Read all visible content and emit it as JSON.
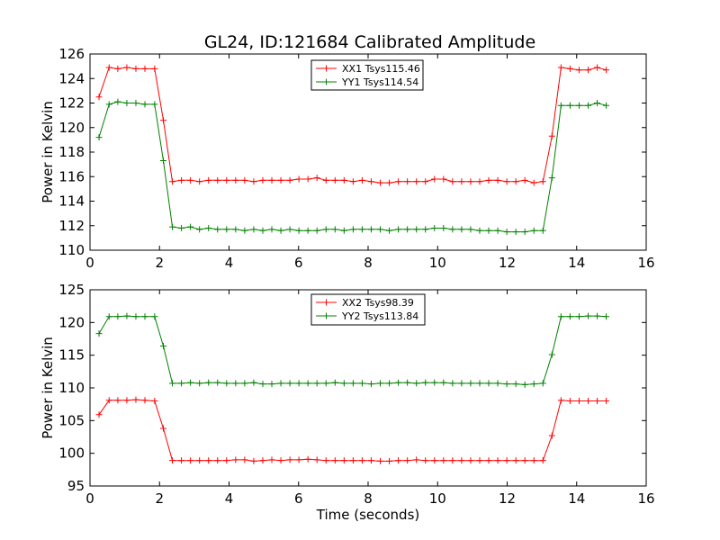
{
  "chart_data": [
    {
      "type": "line",
      "title": "GL24, ID:121684 Calibrated Amplitude",
      "xlabel": "",
      "ylabel": "Power in Kelvin",
      "xlim": [
        0,
        16
      ],
      "ylim": [
        110,
        126
      ],
      "xticks": [
        "0",
        "2",
        "4",
        "6",
        "8",
        "10",
        "12",
        "14",
        "16"
      ],
      "yticks": [
        "110",
        "112",
        "114",
        "116",
        "118",
        "120",
        "122",
        "124",
        "126"
      ],
      "grid": false,
      "legend_position": "top-center",
      "x": [
        0.26,
        0.55,
        0.8,
        1.06,
        1.32,
        1.58,
        1.86,
        2.11,
        2.37,
        2.63,
        2.89,
        3.15,
        3.41,
        3.67,
        3.93,
        4.19,
        4.45,
        4.71,
        4.97,
        5.23,
        5.49,
        5.75,
        6.01,
        6.27,
        6.53,
        6.79,
        7.05,
        7.31,
        7.57,
        7.83,
        8.09,
        8.35,
        8.61,
        8.87,
        9.13,
        9.39,
        9.65,
        9.91,
        10.17,
        10.43,
        10.69,
        10.95,
        11.21,
        11.47,
        11.73,
        11.99,
        12.25,
        12.51,
        12.77,
        13.03,
        13.29,
        13.55,
        13.81,
        14.07,
        14.33,
        14.59,
        14.85
      ],
      "series": [
        {
          "name": "XX1 Tsys115.46",
          "color": "#ff0000",
          "values": [
            122.5,
            124.9,
            124.8,
            124.9,
            124.8,
            124.8,
            124.8,
            120.6,
            115.6,
            115.7,
            115.7,
            115.6,
            115.7,
            115.7,
            115.7,
            115.7,
            115.7,
            115.6,
            115.7,
            115.7,
            115.7,
            115.7,
            115.8,
            115.8,
            115.9,
            115.7,
            115.7,
            115.7,
            115.6,
            115.7,
            115.6,
            115.5,
            115.5,
            115.6,
            115.6,
            115.6,
            115.6,
            115.8,
            115.8,
            115.6,
            115.6,
            115.6,
            115.6,
            115.7,
            115.7,
            115.6,
            115.6,
            115.7,
            115.5,
            115.6,
            119.3,
            124.9,
            124.8,
            124.7,
            124.7,
            124.9,
            124.7
          ]
        },
        {
          "name": "YY1 Tsys114.54",
          "color": "#008000",
          "values": [
            119.2,
            121.9,
            122.1,
            122.0,
            122.0,
            121.9,
            121.9,
            117.3,
            111.9,
            111.8,
            111.9,
            111.7,
            111.8,
            111.7,
            111.7,
            111.7,
            111.6,
            111.7,
            111.6,
            111.7,
            111.6,
            111.7,
            111.6,
            111.6,
            111.6,
            111.7,
            111.7,
            111.6,
            111.7,
            111.7,
            111.7,
            111.7,
            111.6,
            111.7,
            111.7,
            111.7,
            111.7,
            111.8,
            111.8,
            111.7,
            111.7,
            111.7,
            111.6,
            111.6,
            111.6,
            111.5,
            111.5,
            111.5,
            111.6,
            111.6,
            115.9,
            121.8,
            121.8,
            121.8,
            121.8,
            122.0,
            121.8
          ]
        }
      ]
    },
    {
      "type": "line",
      "title": "",
      "xlabel": "Time (seconds)",
      "ylabel": "Power in Kelvin",
      "xlim": [
        0,
        16
      ],
      "ylim": [
        95,
        125
      ],
      "xticks": [
        "0",
        "2",
        "4",
        "6",
        "8",
        "10",
        "12",
        "14",
        "16"
      ],
      "yticks": [
        "95",
        "100",
        "105",
        "110",
        "115",
        "120",
        "125"
      ],
      "grid": false,
      "legend_position": "top-center",
      "x": [
        0.26,
        0.55,
        0.8,
        1.06,
        1.32,
        1.58,
        1.86,
        2.11,
        2.37,
        2.63,
        2.89,
        3.15,
        3.41,
        3.67,
        3.93,
        4.19,
        4.45,
        4.71,
        4.97,
        5.23,
        5.49,
        5.75,
        6.01,
        6.27,
        6.53,
        6.79,
        7.05,
        7.31,
        7.57,
        7.83,
        8.09,
        8.35,
        8.61,
        8.87,
        9.13,
        9.39,
        9.65,
        9.91,
        10.17,
        10.43,
        10.69,
        10.95,
        11.21,
        11.47,
        11.73,
        11.99,
        12.25,
        12.51,
        12.77,
        13.03,
        13.29,
        13.55,
        13.81,
        14.07,
        14.33,
        14.59,
        14.85
      ],
      "series": [
        {
          "name": "XX2 Tsys98.39",
          "color": "#ff0000",
          "values": [
            105.9,
            108.1,
            108.1,
            108.1,
            108.2,
            108.1,
            108.0,
            103.8,
            98.9,
            98.9,
            98.9,
            98.9,
            98.9,
            98.9,
            98.9,
            99.0,
            99.0,
            98.8,
            98.9,
            99.0,
            98.9,
            99.0,
            99.0,
            99.1,
            99.0,
            98.9,
            98.9,
            98.9,
            98.9,
            98.9,
            98.9,
            98.8,
            98.8,
            98.9,
            98.9,
            99.0,
            98.9,
            98.9,
            98.9,
            98.9,
            98.9,
            98.9,
            98.9,
            98.9,
            98.9,
            98.9,
            98.9,
            98.9,
            98.9,
            98.9,
            102.7,
            108.1,
            108.0,
            108.0,
            108.0,
            108.0,
            108.0
          ]
        },
        {
          "name": "YY2 Tsys113.84",
          "color": "#008000",
          "values": [
            118.3,
            120.9,
            120.9,
            121.0,
            120.9,
            120.9,
            120.9,
            116.4,
            110.7,
            110.7,
            110.8,
            110.7,
            110.8,
            110.8,
            110.7,
            110.7,
            110.7,
            110.8,
            110.6,
            110.6,
            110.7,
            110.7,
            110.7,
            110.7,
            110.7,
            110.7,
            110.8,
            110.7,
            110.7,
            110.7,
            110.6,
            110.7,
            110.7,
            110.8,
            110.8,
            110.7,
            110.8,
            110.8,
            110.8,
            110.7,
            110.7,
            110.7,
            110.7,
            110.7,
            110.7,
            110.6,
            110.6,
            110.5,
            110.6,
            110.7,
            115.1,
            120.9,
            120.9,
            120.9,
            121.0,
            121.0,
            120.9
          ]
        }
      ]
    }
  ]
}
